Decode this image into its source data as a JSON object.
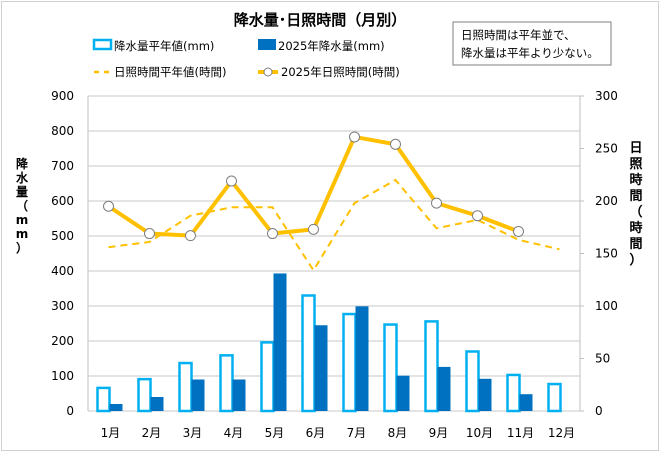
{
  "chart_data": {
    "type": "bar+line",
    "title": "降水量･日照時間（月別）",
    "annotation": [
      "日照時間は平年並で、",
      "降水量は平年より少ない。"
    ],
    "categories": [
      "1月",
      "2月",
      "3月",
      "4月",
      "5月",
      "6月",
      "7月",
      "8月",
      "9月",
      "10月",
      "11月",
      "12月"
    ],
    "y_left": {
      "label": "降水量（mm）",
      "range": [
        0,
        900
      ],
      "ticks": [
        "0",
        "100",
        "200",
        "300",
        "400",
        "500",
        "600",
        "700",
        "800",
        "900"
      ]
    },
    "y_right": {
      "label": "日照時間（時間）",
      "range": [
        0,
        300
      ],
      "ticks": [
        "0",
        "50",
        "100",
        "150",
        "200",
        "250",
        "300"
      ]
    },
    "grid": true,
    "legend_position": "top",
    "series": [
      {
        "name": "降水量平年値(mm)",
        "type": "bar",
        "style": "hollow",
        "axis": "left",
        "color": "#00b0f0",
        "values": [
          66,
          91,
          137,
          159,
          196,
          330,
          277,
          247,
          256,
          170,
          103,
          77
        ]
      },
      {
        "name": "2025年降水量(mm)",
        "type": "bar",
        "style": "filled",
        "axis": "left",
        "color": "#0070c0",
        "values": [
          20,
          40,
          90,
          90,
          393,
          245,
          299,
          101,
          126,
          92,
          48,
          null
        ]
      },
      {
        "name": "日照時間平年値(時間)",
        "type": "line",
        "style": "dashed",
        "axis": "right",
        "color": "#ffc000",
        "values": [
          156,
          161,
          186,
          194,
          194,
          134,
          198,
          220,
          174,
          182,
          163,
          154
        ]
      },
      {
        "name": "2025年日照時間(時間)",
        "type": "line",
        "style": "solid-markers",
        "axis": "right",
        "color": "#ffc000",
        "values": [
          195,
          169,
          167,
          219,
          169,
          173,
          261,
          254,
          198,
          186,
          171,
          null
        ]
      }
    ]
  }
}
